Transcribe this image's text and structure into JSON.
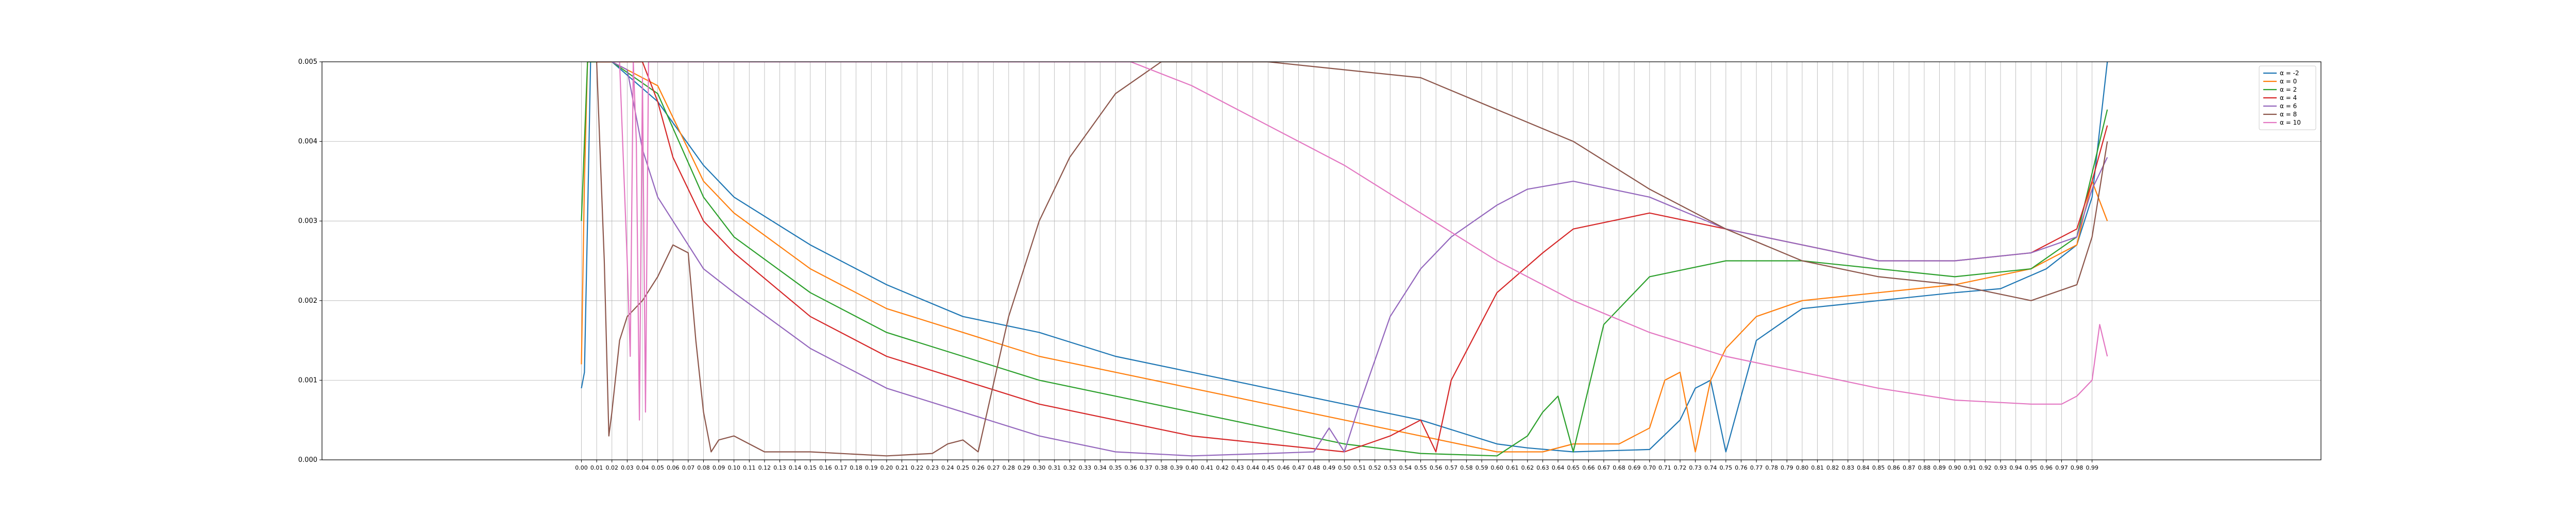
{
  "chart_data": {
    "type": "line",
    "title": "",
    "xlabel": "",
    "ylabel": "",
    "xlim": [
      -0.17,
      1.14
    ],
    "ylim": [
      0,
      0.005
    ],
    "grid": true,
    "legend_position": "top-right",
    "x_tick_step": 0.01,
    "x_tick_count": 100,
    "y_ticks": [
      "0.000",
      "0.001",
      "0.002",
      "0.003",
      "0.004",
      "0.005"
    ],
    "series": [
      {
        "name": "α = -2",
        "color": "#1f77b4",
        "x": [
          0.0,
          0.002,
          0.004,
          0.006,
          0.01,
          0.02,
          0.05,
          0.08,
          0.1,
          0.15,
          0.2,
          0.25,
          0.3,
          0.35,
          0.4,
          0.45,
          0.5,
          0.55,
          0.6,
          0.62,
          0.65,
          0.7,
          0.72,
          0.73,
          0.74,
          0.75,
          0.77,
          0.8,
          0.85,
          0.9,
          0.93,
          0.96,
          0.98,
          0.99,
          1.0
        ],
        "y": [
          0.0009,
          0.0011,
          0.003,
          0.005,
          0.005,
          0.005,
          0.0045,
          0.0037,
          0.0033,
          0.0027,
          0.0022,
          0.0018,
          0.0016,
          0.0013,
          0.0011,
          0.0009,
          0.0007,
          0.0005,
          0.0002,
          0.00015,
          0.0001,
          0.00013,
          0.0005,
          0.0009,
          0.001,
          0.0001,
          0.0015,
          0.0019,
          0.002,
          0.0021,
          0.00215,
          0.0024,
          0.0027,
          0.0033,
          0.005
        ]
      },
      {
        "name": "α = 0",
        "color": "#ff7f0e",
        "x": [
          0.0,
          0.002,
          0.004,
          0.01,
          0.02,
          0.05,
          0.08,
          0.1,
          0.15,
          0.2,
          0.25,
          0.3,
          0.35,
          0.4,
          0.45,
          0.5,
          0.55,
          0.6,
          0.63,
          0.65,
          0.68,
          0.7,
          0.71,
          0.72,
          0.73,
          0.74,
          0.75,
          0.77,
          0.8,
          0.85,
          0.9,
          0.95,
          0.98,
          0.99,
          1.0
        ],
        "y": [
          0.0012,
          0.0035,
          0.005,
          0.005,
          0.005,
          0.0047,
          0.0035,
          0.0031,
          0.0024,
          0.0019,
          0.0016,
          0.0013,
          0.0011,
          0.0009,
          0.0007,
          0.0005,
          0.0003,
          0.0001,
          0.0001,
          0.0002,
          0.0002,
          0.0004,
          0.001,
          0.0011,
          0.0001,
          0.001,
          0.0014,
          0.0018,
          0.002,
          0.0021,
          0.0022,
          0.0024,
          0.0027,
          0.0035,
          0.003
        ]
      },
      {
        "name": "α = 2",
        "color": "#2ca02c",
        "x": [
          0.0,
          0.002,
          0.004,
          0.01,
          0.02,
          0.05,
          0.08,
          0.1,
          0.15,
          0.2,
          0.25,
          0.3,
          0.35,
          0.4,
          0.45,
          0.5,
          0.55,
          0.6,
          0.62,
          0.63,
          0.64,
          0.65,
          0.67,
          0.7,
          0.75,
          0.8,
          0.85,
          0.9,
          0.95,
          0.98,
          0.99,
          1.0
        ],
        "y": [
          0.003,
          0.004,
          0.005,
          0.005,
          0.005,
          0.0046,
          0.0033,
          0.0028,
          0.0021,
          0.0016,
          0.0013,
          0.001,
          0.0008,
          0.0006,
          0.0004,
          0.0002,
          8e-05,
          5e-05,
          0.0003,
          0.0006,
          0.0008,
          0.0001,
          0.0017,
          0.0023,
          0.0025,
          0.0025,
          0.0024,
          0.0023,
          0.0024,
          0.0028,
          0.0036,
          0.0044
        ]
      },
      {
        "name": "α = 4",
        "color": "#d62728",
        "x": [
          0.01,
          0.02,
          0.04,
          0.05,
          0.06,
          0.08,
          0.1,
          0.15,
          0.2,
          0.25,
          0.3,
          0.35,
          0.4,
          0.45,
          0.5,
          0.53,
          0.55,
          0.56,
          0.57,
          0.6,
          0.63,
          0.65,
          0.7,
          0.75,
          0.8,
          0.85,
          0.9,
          0.95,
          0.98,
          0.99,
          1.0
        ],
        "y": [
          0.005,
          0.005,
          0.005,
          0.0045,
          0.0038,
          0.003,
          0.0026,
          0.0018,
          0.0013,
          0.001,
          0.0007,
          0.0005,
          0.0003,
          0.0002,
          0.0001,
          0.0003,
          0.0005,
          0.0001,
          0.001,
          0.0021,
          0.0026,
          0.0029,
          0.0031,
          0.0029,
          0.0027,
          0.0025,
          0.0025,
          0.0026,
          0.0029,
          0.0035,
          0.0042
        ]
      },
      {
        "name": "α = 6",
        "color": "#9467bd",
        "x": [
          0.02,
          0.03,
          0.04,
          0.05,
          0.06,
          0.08,
          0.1,
          0.15,
          0.2,
          0.25,
          0.3,
          0.35,
          0.4,
          0.45,
          0.48,
          0.49,
          0.5,
          0.51,
          0.53,
          0.55,
          0.57,
          0.6,
          0.62,
          0.65,
          0.7,
          0.75,
          0.8,
          0.85,
          0.9,
          0.95,
          0.98,
          0.99,
          1.0
        ],
        "y": [
          0.005,
          0.0049,
          0.0039,
          0.0033,
          0.003,
          0.0024,
          0.0021,
          0.0014,
          0.0009,
          0.0006,
          0.0003,
          0.0001,
          5e-05,
          8e-05,
          0.0001,
          0.0004,
          0.0001,
          0.0007,
          0.0018,
          0.0024,
          0.0028,
          0.0032,
          0.0034,
          0.0035,
          0.0033,
          0.0029,
          0.0027,
          0.0025,
          0.0025,
          0.0026,
          0.0028,
          0.0034,
          0.0038
        ]
      },
      {
        "name": "α = 8",
        "color": "#8c564b",
        "x": [
          0.01,
          0.015,
          0.018,
          0.02,
          0.025,
          0.03,
          0.04,
          0.05,
          0.06,
          0.07,
          0.075,
          0.08,
          0.085,
          0.09,
          0.1,
          0.12,
          0.15,
          0.2,
          0.23,
          0.24,
          0.25,
          0.26,
          0.28,
          0.3,
          0.32,
          0.35,
          0.38,
          0.4,
          0.45,
          0.5,
          0.55,
          0.6,
          0.65,
          0.7,
          0.75,
          0.8,
          0.85,
          0.9,
          0.95,
          0.98,
          0.99,
          1.0
        ],
        "y": [
          0.005,
          0.0025,
          0.0003,
          0.0006,
          0.0015,
          0.0018,
          0.002,
          0.0023,
          0.0027,
          0.0026,
          0.0015,
          0.0006,
          0.0001,
          0.00025,
          0.0003,
          0.0001,
          0.0001,
          5e-05,
          8e-05,
          0.0002,
          0.00025,
          0.0001,
          0.0018,
          0.003,
          0.0038,
          0.0046,
          0.005,
          0.005,
          0.005,
          0.0049,
          0.0048,
          0.0044,
          0.004,
          0.0034,
          0.0029,
          0.0025,
          0.0023,
          0.0022,
          0.002,
          0.0022,
          0.0028,
          0.004
        ]
      },
      {
        "name": "α = 10",
        "color": "#e377c2",
        "x": [
          0.02,
          0.025,
          0.03,
          0.032,
          0.034,
          0.036,
          0.038,
          0.04,
          0.042,
          0.044,
          0.048,
          0.05,
          0.36,
          0.4,
          0.45,
          0.5,
          0.55,
          0.6,
          0.65,
          0.7,
          0.75,
          0.8,
          0.85,
          0.9,
          0.95,
          0.97,
          0.98,
          0.99,
          0.995,
          1.0
        ],
        "y": [
          0.005,
          0.005,
          0.0025,
          0.0013,
          0.005,
          0.004,
          0.0005,
          0.0048,
          0.0006,
          0.005,
          0.005,
          0.005,
          0.005,
          0.0047,
          0.0042,
          0.0037,
          0.0031,
          0.0025,
          0.002,
          0.0016,
          0.0013,
          0.0011,
          0.0009,
          0.00075,
          0.0007,
          0.0007,
          0.0008,
          0.001,
          0.0017,
          0.0013
        ]
      }
    ]
  }
}
